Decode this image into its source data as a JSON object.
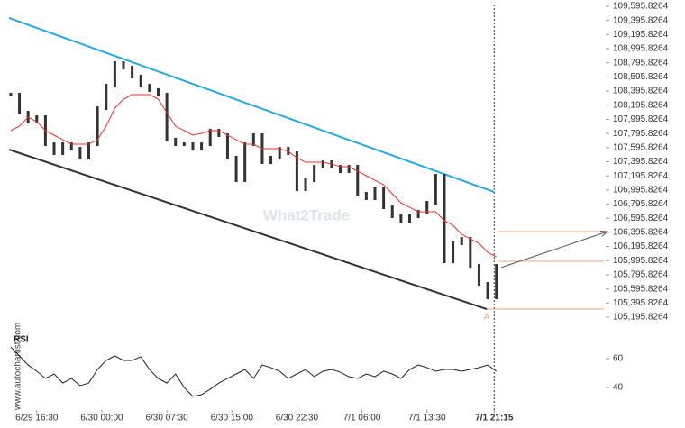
{
  "chart_data": {
    "type": "price-chart",
    "watermark": "What2Trade",
    "source": "www.autochartist.com",
    "pattern_label": "A",
    "ylim": [
      105030,
      109685
    ],
    "yticks": [
      {
        "value": 109595.8264,
        "label": "109,595.8264"
      },
      {
        "value": 109395.8264,
        "label": "109,395.8264"
      },
      {
        "value": 109195.8264,
        "label": "109,195.8264"
      },
      {
        "value": 108995.8264,
        "label": "108,995.8264"
      },
      {
        "value": 108795.8264,
        "label": "108,795.8264"
      },
      {
        "value": 108595.8264,
        "label": "108,595.8264"
      },
      {
        "value": 108395.8264,
        "label": "108,395.8264"
      },
      {
        "value": 108195.8264,
        "label": "108,195.8264"
      },
      {
        "value": 107995.8264,
        "label": "107,995.8264"
      },
      {
        "value": 107795.8264,
        "label": "107,795.8264"
      },
      {
        "value": 107595.8264,
        "label": "107,595.8264"
      },
      {
        "value": 107395.8264,
        "label": "107,395.8264"
      },
      {
        "value": 107195.8264,
        "label": "107,195.8264"
      },
      {
        "value": 106995.8264,
        "label": "106,995.8264"
      },
      {
        "value": 106795.8264,
        "label": "106,795.8264"
      },
      {
        "value": 106595.8264,
        "label": "106,595.8264"
      },
      {
        "value": 106395.8264,
        "label": "106,395.8264"
      },
      {
        "value": 106195.8264,
        "label": "106,195.8264"
      },
      {
        "value": 105995.8264,
        "label": "105,995.8264"
      },
      {
        "value": 105795.8264,
        "label": "105,795.8264"
      },
      {
        "value": 105595.8264,
        "label": "105,595.8264"
      },
      {
        "value": 105395.8264,
        "label": "105,395.8264"
      },
      {
        "value": 105195.8264,
        "label": "105,195.8264"
      }
    ],
    "xlim": [
      -0.2,
      56.5
    ],
    "xticks": [
      {
        "value": 3,
        "label": "6/29 16:30"
      },
      {
        "value": 10.5,
        "label": "6/30 00:00"
      },
      {
        "value": 18,
        "label": "6/30 07:30"
      },
      {
        "value": 25.5,
        "label": "6/30 15:00"
      },
      {
        "value": 33,
        "label": "6/30 22:30"
      },
      {
        "value": 40.5,
        "label": "7/1 06:00"
      },
      {
        "value": 48,
        "label": "7/1 13:30"
      },
      {
        "value": 55.75,
        "label": "7/1 21:15"
      }
    ],
    "price": {
      "color": "#333333",
      "values": [
        108346,
        108091,
        107963,
        108027,
        107644,
        107517,
        107644,
        107580,
        107453,
        107644,
        108154,
        108473,
        108792,
        108729,
        108601,
        108473,
        108410,
        108346,
        107708,
        107644,
        107644,
        107580,
        107644,
        107836,
        107772,
        107453,
        107134,
        107644,
        107772,
        107389,
        107453,
        107580,
        107517,
        107007,
        107134,
        107325,
        107389,
        107325,
        107261,
        107325,
        106943,
        106879,
        107007,
        106751,
        106624,
        106560,
        106624,
        106688,
        106815,
        107198,
        105986,
        106241,
        106305,
        105922,
        105667,
        105476,
        105922
      ]
    },
    "moving_average": {
      "color": "#e8312a",
      "values": [
        107836,
        107899,
        108027,
        107963,
        107836,
        107772,
        107708,
        107644,
        107644,
        107644,
        107708,
        107899,
        108154,
        108282,
        108346,
        108346,
        108346,
        108282,
        108091,
        107899,
        107836,
        107772,
        107797,
        107836,
        107836,
        107772,
        107708,
        107644,
        107644,
        107580,
        107580,
        107580,
        107542,
        107453,
        107389,
        107389,
        107389,
        107364,
        107325,
        107325,
        107261,
        107198,
        107134,
        107070,
        106943,
        106815,
        106751,
        106688,
        106688,
        106688,
        106560,
        106496,
        106369,
        106305,
        106241,
        106113,
        106050
      ]
    },
    "channel": [
      {
        "color": "#29a8e0",
        "x": [
          -0.2,
          55.75
        ],
        "values": [
          109430,
          106968
        ]
      },
      {
        "color": "#333333",
        "x": [
          -0.2,
          54.9
        ],
        "values": [
          107568,
          105310
        ]
      }
    ],
    "levels": {
      "color": "#f0a070",
      "x_start": [
        56.2,
        56.2,
        54.9
      ],
      "values": [
        106407,
        105986,
        105310
      ]
    },
    "forecast_arrow": {
      "color": "#555555",
      "x": [
        56.6,
        68.8
      ],
      "values": [
        105900,
        106407
      ]
    },
    "rsi": {
      "label": "RSI",
      "color": "#222222",
      "ylim": [
        24.4,
        74.4
      ],
      "yticks": [
        60,
        40
      ],
      "values": [
        68.1,
        61.9,
        55.6,
        51.3,
        46.3,
        49.4,
        43.1,
        46.3,
        41.3,
        43.1,
        52.5,
        58.8,
        61.9,
        58.8,
        58.8,
        61.3,
        52.5,
        46.3,
        43.1,
        49.4,
        40,
        33.8,
        35,
        38.8,
        43.1,
        46.3,
        49.4,
        52.5,
        46.3,
        55.6,
        53.8,
        51.3,
        46.3,
        49.4,
        52.5,
        47.5,
        51.3,
        52.5,
        50.6,
        47.5,
        46.3,
        49.4,
        47.5,
        51.3,
        49.4,
        46.3,
        52.5,
        55.6,
        53.8,
        51.3,
        52.5,
        52.5,
        51.3,
        52.5,
        53.8,
        55.6,
        51.3
      ]
    }
  }
}
